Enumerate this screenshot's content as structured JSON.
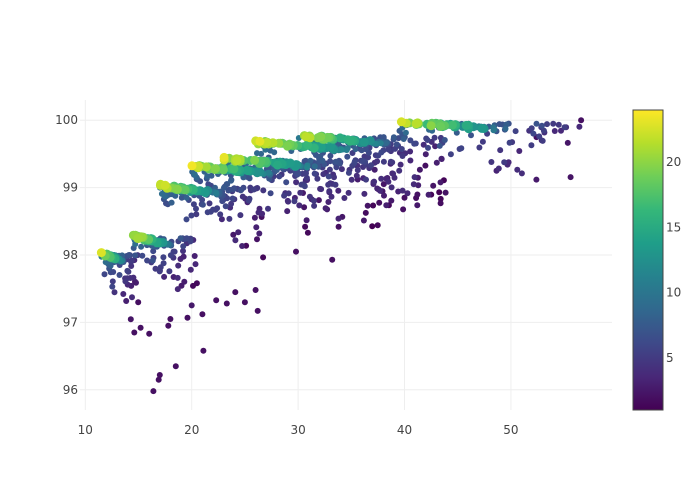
{
  "chart_data": {
    "type": "scatter",
    "title": "",
    "xlabel": "",
    "ylabel": "",
    "xlim": [
      9.5,
      59.5
    ],
    "ylim": [
      95.7,
      100.3
    ],
    "x_ticks": [
      10,
      20,
      30,
      40,
      50
    ],
    "y_ticks": [
      96,
      97,
      98,
      99,
      100
    ],
    "grid": true,
    "colorscale": "viridis",
    "color_range": [
      1,
      24
    ],
    "colorbar_ticks": [
      5,
      10,
      15,
      20
    ],
    "colorbar_stops": [
      "#440154",
      "#482878",
      "#3e4989",
      "#31688e",
      "#26828e",
      "#1f9e89",
      "#35b779",
      "#6ece58",
      "#b5de2b",
      "#fde725"
    ],
    "clusters": [
      {
        "x_min": 11.5,
        "y_top": 98.05,
        "spread_x": 3.5,
        "count": 80
      },
      {
        "x_min": 14.5,
        "y_top": 98.3,
        "spread_x": 6,
        "count": 110
      },
      {
        "x_min": 17,
        "y_top": 99.05,
        "spread_x": 10,
        "count": 140
      },
      {
        "x_min": 20,
        "y_top": 99.35,
        "spread_x": 13,
        "count": 150
      },
      {
        "x_min": 23,
        "y_top": 99.45,
        "spread_x": 15,
        "count": 150
      },
      {
        "x_min": 26,
        "y_top": 99.7,
        "spread_x": 16,
        "count": 160
      },
      {
        "x_min": 30,
        "y_top": 99.8,
        "spread_x": 14,
        "count": 150
      },
      {
        "x_min": 39.5,
        "y_top": 100.0,
        "spread_x": 17,
        "count": 130
      }
    ],
    "outliers": [
      {
        "x": 16.4,
        "y": 95.98,
        "c": 2
      },
      {
        "x": 16.9,
        "y": 96.15,
        "c": 2
      },
      {
        "x": 17.0,
        "y": 96.22,
        "c": 2
      },
      {
        "x": 18.5,
        "y": 96.35,
        "c": 2
      },
      {
        "x": 21.1,
        "y": 96.58,
        "c": 2
      },
      {
        "x": 16.0,
        "y": 96.83,
        "c": 2
      },
      {
        "x": 14.6,
        "y": 96.85,
        "c": 2
      },
      {
        "x": 15.2,
        "y": 96.92,
        "c": 2
      },
      {
        "x": 17.8,
        "y": 96.95,
        "c": 2
      },
      {
        "x": 18.0,
        "y": 97.05,
        "c": 2
      },
      {
        "x": 19.6,
        "y": 97.07,
        "c": 2
      },
      {
        "x": 21.0,
        "y": 97.12,
        "c": 2
      },
      {
        "x": 26.2,
        "y": 97.17,
        "c": 2
      },
      {
        "x": 22.3,
        "y": 97.33,
        "c": 2
      },
      {
        "x": 23.3,
        "y": 97.28,
        "c": 2
      },
      {
        "x": 25.0,
        "y": 97.3,
        "c": 2
      },
      {
        "x": 24.1,
        "y": 97.45,
        "c": 2
      },
      {
        "x": 26.0,
        "y": 97.48,
        "c": 2
      },
      {
        "x": 33.2,
        "y": 97.93,
        "c": 2
      },
      {
        "x": 29.8,
        "y": 98.05,
        "c": 2
      },
      {
        "x": 33.8,
        "y": 98.42,
        "c": 2
      },
      {
        "x": 56.6,
        "y": 100.0,
        "c": 2
      },
      {
        "x": 52.4,
        "y": 99.75,
        "c": 2
      },
      {
        "x": 40.0,
        "y": 98.85,
        "c": 2
      }
    ]
  }
}
